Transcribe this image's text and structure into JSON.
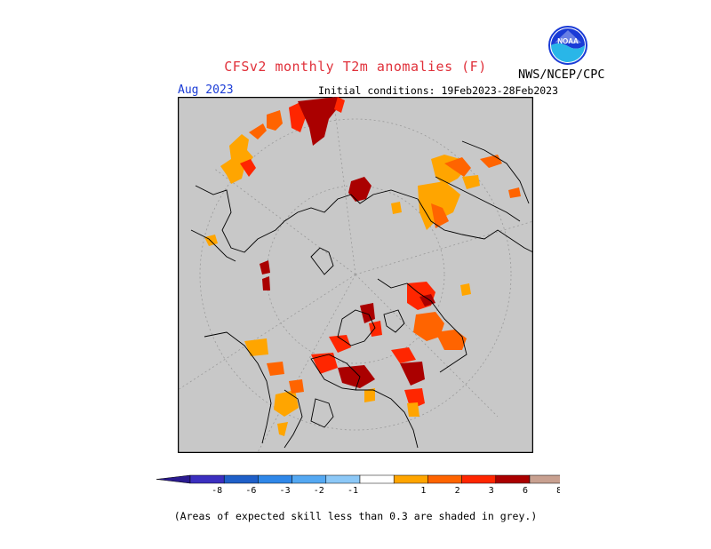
{
  "title": "CFSv2 monthly T2m anomalies (F)",
  "agency": "NWS/NCEP/CPC",
  "valid_month": "Aug 2023",
  "initial_conditions": "Initial conditions: 19Feb2023-28Feb2023",
  "note": "(Areas of expected skill less than 0.3 are shaded in grey.)",
  "logo_text": "NOAA",
  "legend": {
    "items": [
      {
        "label": "-8",
        "color": "#3b2fbf"
      },
      {
        "label": "-6",
        "color": "#1f5fc8"
      },
      {
        "label": "-3",
        "color": "#2f87e8"
      },
      {
        "label": "-2",
        "color": "#54a8f2"
      },
      {
        "label": "-1",
        "color": "#8cc8f7"
      },
      {
        "label": "",
        "color": "#ffffff"
      },
      {
        "label": "1",
        "color": "#ffa500"
      },
      {
        "label": "2",
        "color": "#ff6400"
      },
      {
        "label": "3",
        "color": "#ff2600"
      },
      {
        "label": "6",
        "color": "#aa0000"
      },
      {
        "label": "8",
        "color": "#c8a090"
      }
    ],
    "low_arrow_color": "#2a1a8f",
    "high_arrow_color": "#8a5a4a"
  },
  "map": {
    "background_color": "#c8c8c8",
    "projection": "north-polar-stereographic"
  }
}
